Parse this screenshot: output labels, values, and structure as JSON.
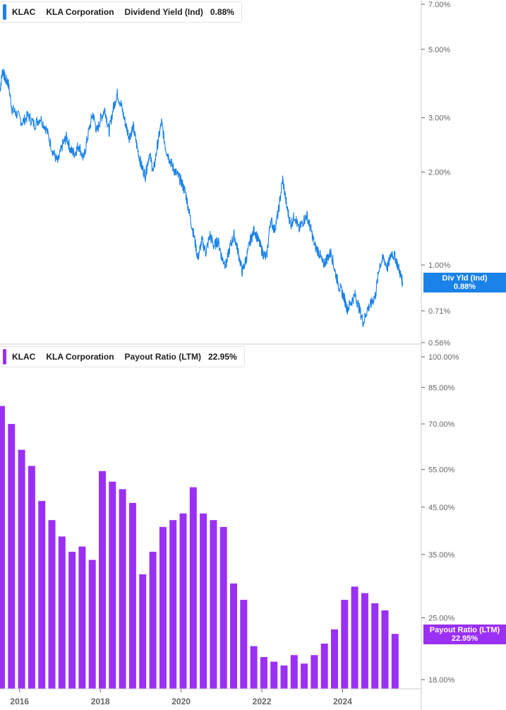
{
  "colors": {
    "yield": "#1a82e8",
    "payout": "#9b30f5",
    "axis": "#666666",
    "divider": "#cccccc"
  },
  "top_legend": {
    "ticker": "KLAC",
    "company": "KLA Corporation",
    "metric": "Dividend Yield (Ind)",
    "value": "0.88%"
  },
  "bottom_legend": {
    "ticker": "KLAC",
    "company": "KLA Corporation",
    "metric": "Payout Ratio (LTM)",
    "value": "22.95%"
  },
  "top_tag": {
    "label": "Div Yld (Ind)",
    "value": "0.88%"
  },
  "bottom_tag": {
    "label": "Payout Ratio (LTM)",
    "value": "22.95%"
  },
  "chart_data": [
    {
      "type": "line",
      "scale": "log",
      "ylim": [
        0.56,
        7.0
      ],
      "xlim": [
        2015.55,
        2025.6
      ],
      "y_ticks": [
        "7.00%",
        "5.00%",
        "3.00%",
        "2.00%",
        "1.00%",
        "0.71%",
        "0.56%"
      ],
      "y_tick_values": [
        7.0,
        5.0,
        3.0,
        2.0,
        1.0,
        0.71,
        0.56
      ],
      "series": [
        {
          "name": "Dividend Yield (Ind)",
          "x": [
            2015.55,
            2015.62,
            2015.68,
            2015.75,
            2015.85,
            2015.95,
            2016.1,
            2016.25,
            2016.4,
            2016.55,
            2016.7,
            2016.85,
            2016.98,
            2017.1,
            2017.2,
            2017.3,
            2017.4,
            2017.5,
            2017.62,
            2017.72,
            2017.85,
            2017.95,
            2018.05,
            2018.15,
            2018.25,
            2018.35,
            2018.45,
            2018.55,
            2018.65,
            2018.75,
            2018.85,
            2018.95,
            2019.05,
            2019.15,
            2019.25,
            2019.35,
            2019.45,
            2019.55,
            2019.65,
            2019.75,
            2019.85,
            2019.95,
            2020.05,
            2020.15,
            2020.25,
            2020.35,
            2020.45,
            2020.55,
            2020.65,
            2020.75,
            2020.85,
            2020.95,
            2021.05,
            2021.15,
            2021.25,
            2021.35,
            2021.45,
            2021.55,
            2021.65,
            2021.75,
            2021.85,
            2021.95,
            2022.05,
            2022.15,
            2022.25,
            2022.35,
            2022.45,
            2022.55,
            2022.65,
            2022.75,
            2022.85,
            2022.95,
            2023.05,
            2023.15,
            2023.25,
            2023.35,
            2023.45,
            2023.55,
            2023.65,
            2023.75,
            2023.85,
            2023.95,
            2024.05,
            2024.15,
            2024.25,
            2024.35,
            2024.45,
            2024.55,
            2024.65,
            2024.75,
            2024.85,
            2024.95,
            2025.05,
            2025.15,
            2025.25,
            2025.35,
            2025.45,
            2025.52
          ],
          "values": [
            3.7,
            4.3,
            4.0,
            3.9,
            3.2,
            3.1,
            2.9,
            3.05,
            2.85,
            3.0,
            2.75,
            2.35,
            2.15,
            2.45,
            2.6,
            2.35,
            2.3,
            2.45,
            2.2,
            2.6,
            3.1,
            2.7,
            3.0,
            3.2,
            2.7,
            3.2,
            3.6,
            3.3,
            2.9,
            2.6,
            2.8,
            2.4,
            2.1,
            1.95,
            2.3,
            2.0,
            2.45,
            2.9,
            2.4,
            2.2,
            2.05,
            1.95,
            1.85,
            1.7,
            1.45,
            1.25,
            1.05,
            1.2,
            1.1,
            1.25,
            1.15,
            1.2,
            1.05,
            1.0,
            1.15,
            1.25,
            1.1,
            0.95,
            1.05,
            1.2,
            1.3,
            1.2,
            1.1,
            1.05,
            1.4,
            1.3,
            1.5,
            1.9,
            1.55,
            1.35,
            1.45,
            1.3,
            1.38,
            1.45,
            1.3,
            1.15,
            1.1,
            1.0,
            1.05,
            1.1,
            0.95,
            0.85,
            0.8,
            0.72,
            0.76,
            0.8,
            0.72,
            0.65,
            0.72,
            0.75,
            0.8,
            1.0,
            1.05,
            0.98,
            1.1,
            1.05,
            0.95,
            0.88
          ]
        }
      ]
    },
    {
      "type": "bar",
      "scale": "log",
      "ylim": [
        18.0,
        100.0
      ],
      "xlim": [
        2015.55,
        2025.6
      ],
      "y_ticks": [
        "100.00%",
        "85.00%",
        "70.00%",
        "55.00%",
        "45.00%",
        "35.00%",
        "25.00%",
        "18.00%"
      ],
      "y_tick_values": [
        100,
        85,
        70,
        55,
        45,
        35,
        25,
        18
      ],
      "x_ticks": [
        "2016",
        "2018",
        "2020",
        "2022",
        "2024"
      ],
      "x_tick_values": [
        2016.0,
        2018.0,
        2020.0,
        2022.0,
        2024.0
      ],
      "series": [
        {
          "name": "Payout Ratio (LTM)",
          "x": [
            2015.55,
            2015.8,
            2016.05,
            2016.3,
            2016.55,
            2016.8,
            2017.05,
            2017.3,
            2017.55,
            2017.8,
            2018.05,
            2018.3,
            2018.55,
            2018.8,
            2019.05,
            2019.3,
            2019.55,
            2019.8,
            2020.05,
            2020.3,
            2020.55,
            2020.8,
            2021.05,
            2021.3,
            2021.55,
            2021.8,
            2022.05,
            2022.3,
            2022.55,
            2022.8,
            2023.05,
            2023.3,
            2023.55,
            2023.8,
            2024.05,
            2024.3,
            2024.55,
            2024.8,
            2025.05,
            2025.3
          ],
          "values": [
            77.0,
            70.0,
            61.0,
            56.0,
            46.5,
            42.0,
            38.5,
            35.5,
            36.5,
            34.0,
            54.5,
            51.5,
            49.5,
            46.0,
            31.5,
            35.5,
            40.5,
            42.0,
            43.5,
            50.0,
            43.5,
            42.0,
            40.5,
            30.0,
            27.5,
            21.5,
            20.3,
            19.8,
            19.4,
            20.5,
            19.6,
            20.5,
            21.8,
            23.5,
            27.5,
            29.5,
            28.5,
            27.0,
            26.0,
            22.95
          ]
        }
      ]
    }
  ]
}
